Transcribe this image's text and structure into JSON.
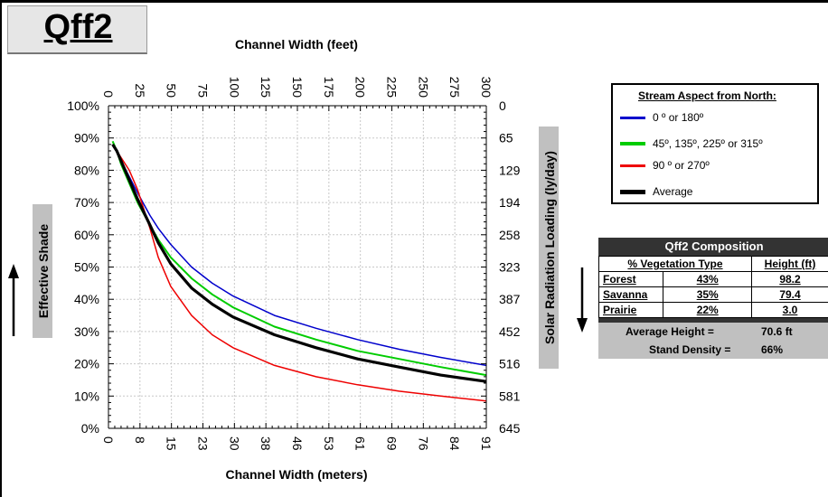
{
  "title": "Qff2",
  "colors": {
    "blue": "#0000cc",
    "green": "#00cc00",
    "red": "#ee0000",
    "black": "#000000"
  },
  "chart_data": {
    "type": "line",
    "top_axis": {
      "label": "Channel Width (feet)",
      "ticks": [
        "0",
        "25",
        "50",
        "75",
        "100",
        "125",
        "150",
        "175",
        "200",
        "225",
        "250",
        "275",
        "300"
      ]
    },
    "bottom_axis": {
      "label": "Channel Width (meters)",
      "ticks": [
        "0",
        "8",
        "15",
        "23",
        "30",
        "38",
        "46",
        "53",
        "61",
        "69",
        "76",
        "84",
        "91"
      ]
    },
    "left_axis": {
      "label": "Effective Shade",
      "ticks": [
        "0%",
        "10%",
        "20%",
        "30%",
        "40%",
        "50%",
        "60%",
        "70%",
        "80%",
        "90%",
        "100%"
      ],
      "ylim": [
        0,
        100
      ]
    },
    "right_axis": {
      "label": "Solar Radiation Loading (ly/day)",
      "ticks": [
        "645",
        "581",
        "516",
        "452",
        "387",
        "323",
        "258",
        "194",
        "129",
        "65",
        "0"
      ]
    },
    "xlim": [
      0,
      91
    ],
    "grid": true,
    "legend_position": "right",
    "x": [
      1,
      2,
      3,
      5,
      7,
      10,
      12,
      15,
      20,
      25,
      30,
      40,
      50,
      60,
      70,
      80,
      91
    ],
    "series": [
      {
        "name": "0 º or 180º",
        "color": "#0000cc",
        "values": [
          88,
          86,
          83,
          78,
          73,
          66,
          62,
          57,
          50,
          45,
          41,
          35,
          31,
          27.5,
          24.5,
          22,
          19.5
        ]
      },
      {
        "name": "45º, 135º, 225º or 315º",
        "color": "#00cc00",
        "values": [
          89,
          86,
          82,
          76,
          70,
          63,
          58.5,
          53,
          46.5,
          41.5,
          37.5,
          31.5,
          27.5,
          24,
          21.5,
          19,
          16.5
        ]
      },
      {
        "name": "90 º or 270º",
        "color": "#ee0000",
        "values": [
          88,
          86,
          84,
          80,
          74,
          62,
          53,
          44,
          35,
          29,
          25,
          19.5,
          16,
          13.5,
          11.5,
          10,
          8.5
        ]
      },
      {
        "name": "Average",
        "color": "#000000",
        "values": [
          88,
          86,
          83,
          77,
          71,
          63,
          57.5,
          51,
          43.5,
          38.5,
          34.5,
          29,
          25,
          21.5,
          19,
          16.5,
          14.5
        ]
      }
    ]
  },
  "legend": {
    "title": "Stream Aspect from North:",
    "items": [
      {
        "label": "0 º or 180º",
        "color": "#0000cc"
      },
      {
        "label": "45º, 135º, 225º or 315º",
        "color": "#00cc00"
      },
      {
        "label": "90 º or 270º",
        "color": "#ee0000"
      },
      {
        "label": "Average",
        "color": "#000000"
      }
    ]
  },
  "composition": {
    "title": "Qff2 Composition",
    "headers": [
      "% Vegetation Type",
      "Height (ft)"
    ],
    "rows": [
      {
        "type": "Forest",
        "pct": "43%",
        "height": "98.2"
      },
      {
        "type": "Savanna",
        "pct": "35%",
        "height": "79.4"
      },
      {
        "type": "Prairie",
        "pct": "22%",
        "height": "3.0"
      }
    ],
    "avg_height_label": "Average Height =",
    "avg_height_value": "70.6 ft",
    "density_label": "Stand Density =",
    "density_value": "66%"
  }
}
